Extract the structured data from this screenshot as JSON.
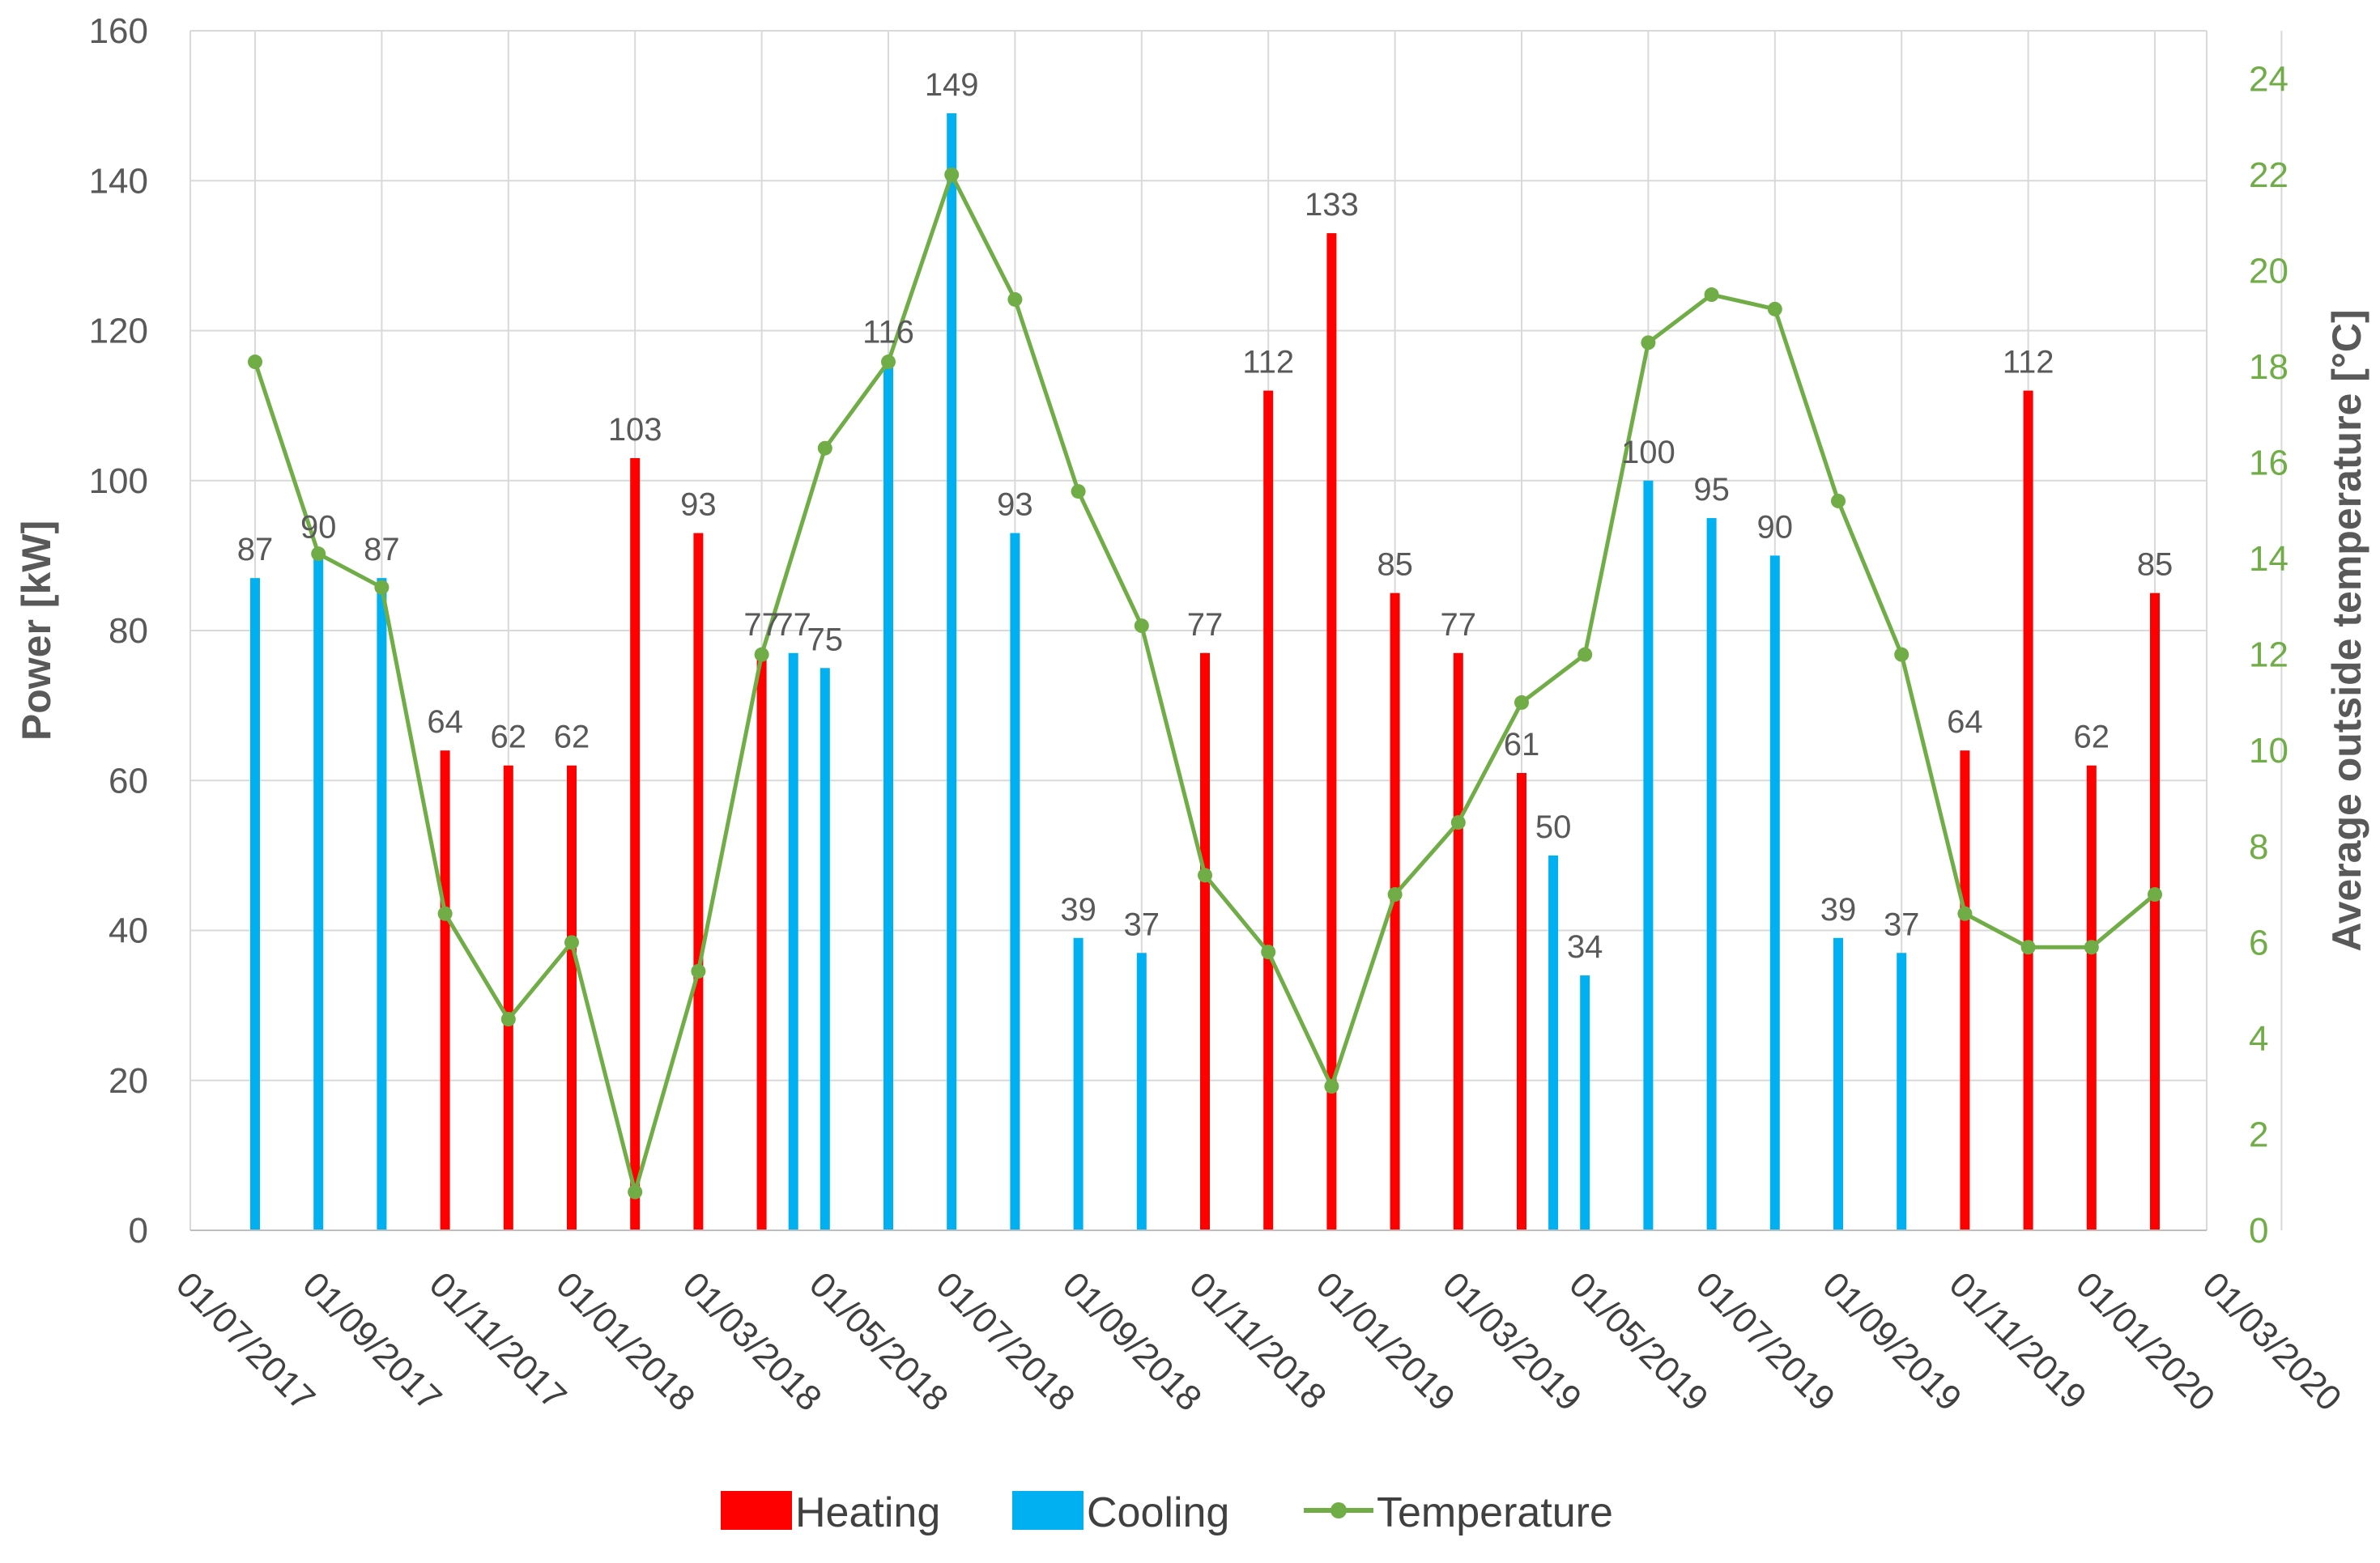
{
  "chart_data": {
    "type": "bar",
    "title": "",
    "xlabel": "",
    "ylabel": "Power [kW]",
    "y2label": "Average outside temperature [°C]",
    "ylim": [
      0,
      160
    ],
    "yticks": [
      0,
      20,
      40,
      60,
      80,
      100,
      120,
      140,
      160
    ],
    "y2lim": [
      0,
      25
    ],
    "y2ticks": [
      0,
      2,
      4,
      6,
      8,
      10,
      12,
      14,
      16,
      18,
      20,
      22,
      24
    ],
    "x_tick_labels": [
      "01/07/2017",
      "01/09/2017",
      "01/11/2017",
      "01/01/2018",
      "01/03/2018",
      "01/05/2018",
      "01/07/2018",
      "01/09/2018",
      "01/11/2018",
      "01/01/2019",
      "01/03/2019",
      "01/05/2019",
      "01/07/2019",
      "01/09/2019",
      "01/11/2019",
      "01/01/2020",
      "01/03/2020"
    ],
    "xlim_months": [
      0,
      32
    ],
    "grid": true,
    "colors": {
      "heating": "#FF0000",
      "cooling": "#00B0F0",
      "temperature": "#70AD47"
    },
    "series": [
      {
        "name": "Heating",
        "kind": "bar",
        "points": [
          {
            "x": 3.0,
            "y": 64
          },
          {
            "x": 4.0,
            "y": 62
          },
          {
            "x": 5.0,
            "y": 62
          },
          {
            "x": 6.0,
            "y": 103
          },
          {
            "x": 7.0,
            "y": 93
          },
          {
            "x": 8.0,
            "y": 77
          },
          {
            "x": 15.0,
            "y": 77
          },
          {
            "x": 16.0,
            "y": 112
          },
          {
            "x": 17.0,
            "y": 133
          },
          {
            "x": 18.0,
            "y": 85
          },
          {
            "x": 19.0,
            "y": 77
          },
          {
            "x": 20.0,
            "y": 61
          },
          {
            "x": 27.0,
            "y": 64
          },
          {
            "x": 28.0,
            "y": 112
          },
          {
            "x": 29.0,
            "y": 62
          },
          {
            "x": 30.0,
            "y": 85
          }
        ]
      },
      {
        "name": "Cooling",
        "kind": "bar",
        "points": [
          {
            "x": 0.0,
            "y": 87
          },
          {
            "x": 1.0,
            "y": 90
          },
          {
            "x": 2.0,
            "y": 87
          },
          {
            "x": 8.5,
            "y": 77
          },
          {
            "x": 9.0,
            "y": 75
          },
          {
            "x": 10.0,
            "y": 116
          },
          {
            "x": 11.0,
            "y": 149
          },
          {
            "x": 12.0,
            "y": 93
          },
          {
            "x": 13.0,
            "y": 39
          },
          {
            "x": 14.0,
            "y": 37
          },
          {
            "x": 20.5,
            "y": 50
          },
          {
            "x": 21.0,
            "y": 34
          },
          {
            "x": 22.0,
            "y": 100
          },
          {
            "x": 23.0,
            "y": 95
          },
          {
            "x": 24.0,
            "y": 90
          },
          {
            "x": 25.0,
            "y": 39
          },
          {
            "x": 26.0,
            "y": 37
          }
        ]
      },
      {
        "name": "Temperature",
        "kind": "line",
        "axis": "right",
        "points": [
          {
            "x": 0.0,
            "y": 18.1
          },
          {
            "x": 1.0,
            "y": 14.1
          },
          {
            "x": 2.0,
            "y": 13.4
          },
          {
            "x": 3.0,
            "y": 6.6
          },
          {
            "x": 4.0,
            "y": 4.4
          },
          {
            "x": 5.0,
            "y": 6.0
          },
          {
            "x": 6.0,
            "y": 0.8
          },
          {
            "x": 7.0,
            "y": 5.4
          },
          {
            "x": 8.0,
            "y": 12.0
          },
          {
            "x": 9.0,
            "y": 16.3
          },
          {
            "x": 10.0,
            "y": 18.1
          },
          {
            "x": 11.0,
            "y": 22.0
          },
          {
            "x": 12.0,
            "y": 19.4
          },
          {
            "x": 13.0,
            "y": 15.4
          },
          {
            "x": 14.0,
            "y": 12.6
          },
          {
            "x": 15.0,
            "y": 7.4
          },
          {
            "x": 16.0,
            "y": 5.8
          },
          {
            "x": 17.0,
            "y": 3.0
          },
          {
            "x": 18.0,
            "y": 7.0
          },
          {
            "x": 19.0,
            "y": 8.5
          },
          {
            "x": 20.0,
            "y": 11.0
          },
          {
            "x": 21.0,
            "y": 12.0
          },
          {
            "x": 22.0,
            "y": 18.5
          },
          {
            "x": 23.0,
            "y": 19.5
          },
          {
            "x": 24.0,
            "y": 19.2
          },
          {
            "x": 25.0,
            "y": 15.2
          },
          {
            "x": 26.0,
            "y": 12.0
          },
          {
            "x": 27.0,
            "y": 6.6
          },
          {
            "x": 28.0,
            "y": 5.9
          },
          {
            "x": 29.0,
            "y": 5.9
          },
          {
            "x": 30.0,
            "y": 7.0
          }
        ]
      }
    ],
    "legend": {
      "position": "bottom",
      "entries": [
        {
          "label": "Heating",
          "icon": "color-swatch"
        },
        {
          "label": "Cooling",
          "icon": "color-swatch"
        },
        {
          "label": "Temperature",
          "icon": "line-marker"
        }
      ]
    }
  }
}
